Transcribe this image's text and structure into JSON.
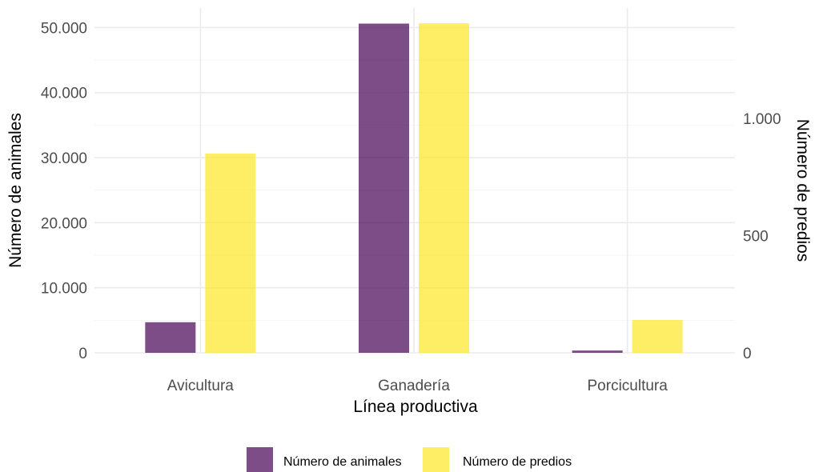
{
  "chart_data": {
    "type": "bar",
    "categories": [
      "Avicultura",
      "Ganadería",
      "Porcicultura"
    ],
    "series": [
      {
        "name": "Número de animales",
        "axis": "left",
        "values": [
          4700,
          50600,
          350
        ],
        "color": "#440154",
        "opacity": 0.7
      },
      {
        "name": "Número de predios",
        "axis": "right",
        "values": [
          850,
          1405,
          140
        ],
        "color": "#FDE725",
        "opacity": 0.7
      }
    ],
    "xlabel": "Línea productiva",
    "ylabel": "Número de animales",
    "ylabel_right": "Número de predios",
    "ylim": [
      0,
      53000
    ],
    "ylim_right": [
      0,
      1470
    ],
    "yticks": [
      0,
      10000,
      20000,
      30000,
      40000,
      50000
    ],
    "ytick_labels": [
      "0",
      "10.000",
      "20.000",
      "30.000",
      "40.000",
      "50.000"
    ],
    "yticks_right": [
      0,
      500,
      1000
    ],
    "ytick_labels_right": [
      "0",
      "500",
      "1.000"
    ],
    "grid": true,
    "legend_position": "bottom"
  }
}
